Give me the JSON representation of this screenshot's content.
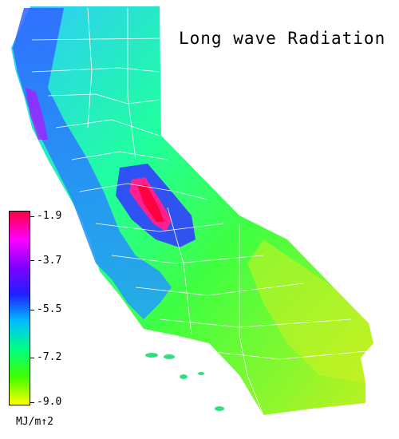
{
  "title": "Long wave Radiation",
  "legend": {
    "units": "MJ/m↑2",
    "ticks": [
      "-1.9",
      "-3.7",
      "-5.5",
      "-7.2",
      "-9.0"
    ],
    "colors": [
      "#ff0040",
      "#ff00ff",
      "#8000ff",
      "#2020ff",
      "#00c0ff",
      "#00ff80",
      "#40ff00",
      "#ffff00"
    ]
  },
  "map_colors": {
    "desert": "#b8f020",
    "valley": "#40ff40",
    "coast": "#4060ff",
    "peak": "#ff2080",
    "county_lines": "#ffffff"
  }
}
